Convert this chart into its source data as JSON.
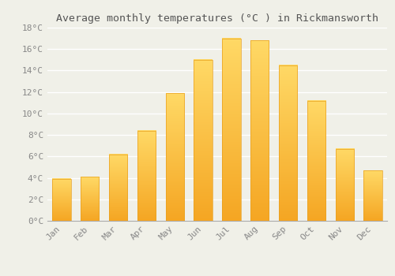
{
  "title": "Average monthly temperatures (°C ) in Rickmansworth",
  "months": [
    "Jan",
    "Feb",
    "Mar",
    "Apr",
    "May",
    "Jun",
    "Jul",
    "Aug",
    "Sep",
    "Oct",
    "Nov",
    "Dec"
  ],
  "values": [
    3.9,
    4.1,
    6.2,
    8.4,
    11.9,
    15.0,
    17.0,
    16.8,
    14.5,
    11.2,
    6.7,
    4.7
  ],
  "bar_color_top": "#FFD966",
  "bar_color_bottom": "#F5A623",
  "ylim": [
    0,
    18
  ],
  "yticks": [
    0,
    2,
    4,
    6,
    8,
    10,
    12,
    14,
    16,
    18
  ],
  "ytick_labels": [
    "0°C",
    "2°C",
    "4°C",
    "6°C",
    "8°C",
    "10°C",
    "12°C",
    "14°C",
    "16°C",
    "18°C"
  ],
  "bg_color": "#F0F0E8",
  "grid_color": "#FFFFFF",
  "title_fontsize": 9.5,
  "tick_fontsize": 8,
  "tick_color": "#888888",
  "bar_edge_color": "#E8A020",
  "bar_width": 0.65
}
